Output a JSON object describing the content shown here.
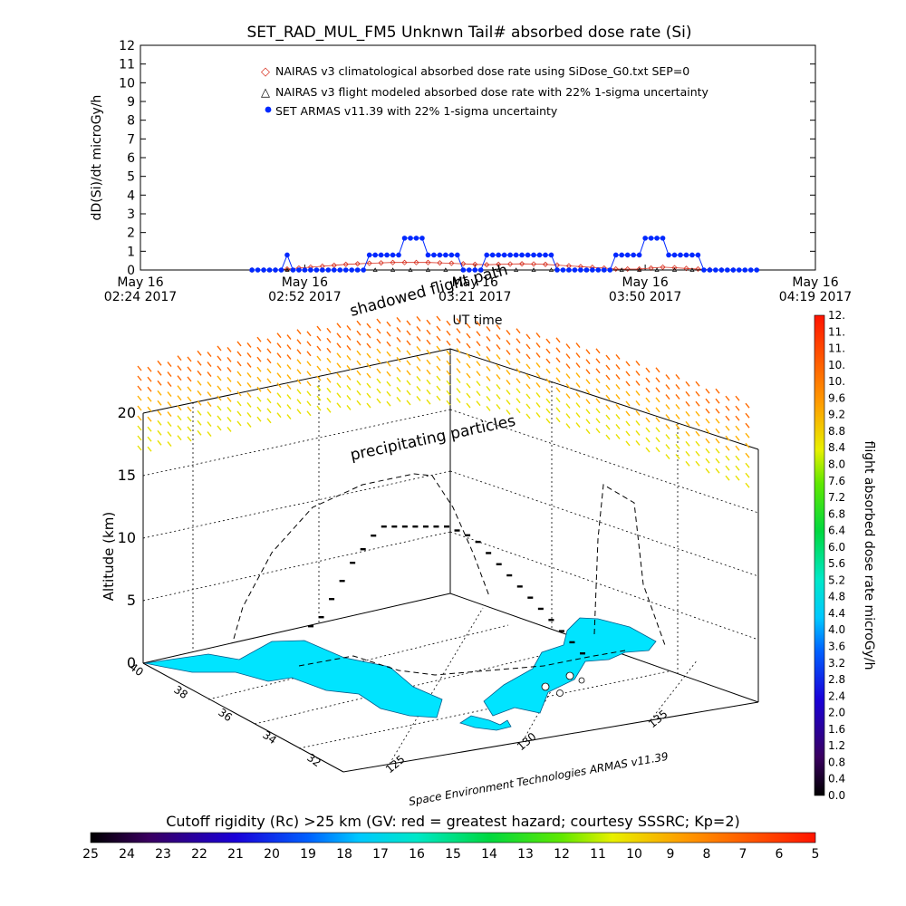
{
  "chart_data": [
    {
      "type": "line",
      "title": "SET_RAD_MUL_FM5 Unknwn Tail#  absorbed dose rate (Si)",
      "xlabel": "UT time",
      "ylabel": "dD(Si)/dt microGy/h",
      "ylim": [
        0,
        12
      ],
      "yticks": [
        "0",
        "1",
        "2",
        "3",
        "4",
        "5",
        "6",
        "7",
        "8",
        "9",
        "10",
        "11",
        "12"
      ],
      "xlim_minutes": [
        0,
        115
      ],
      "xticks": [
        {
          "minute": 0,
          "line1": "May 16",
          "line2": "02:24 2017"
        },
        {
          "minute": 28,
          "line1": "May 16",
          "line2": "02:52 2017"
        },
        {
          "minute": 57,
          "line1": "May 16",
          "line2": "03:21 2017"
        },
        {
          "minute": 86,
          "line1": "May 16",
          "line2": "03:50 2017"
        },
        {
          "minute": 115,
          "line1": "May 16",
          "line2": "04:19 2017"
        }
      ],
      "legend": [
        "NAIRAS v3 climatological absorbed dose rate using SiDose_G0.txt SEP=0",
        "NAIRAS v3 flight modeled absorbed dose rate with 22% 1-sigma uncertainty",
        "SET ARMAS v11.39 with 22% 1-sigma uncertainty"
      ],
      "series": [
        {
          "name": "NAIRAS v3 climatological absorbed dose rate using SiDose_G0.txt SEP=0",
          "color": "#d83020",
          "x": [
            19,
            21,
            23,
            25,
            27,
            29,
            31,
            33,
            35,
            37,
            39,
            41,
            43,
            45,
            47,
            49,
            51,
            53,
            55,
            57,
            59,
            61,
            63,
            65,
            67,
            69,
            71,
            73,
            75,
            77,
            79,
            81,
            83,
            85,
            87,
            89,
            91,
            93,
            95,
            97,
            99,
            101
          ],
          "y": [
            0,
            0,
            0,
            0.05,
            0.1,
            0.15,
            0.2,
            0.25,
            0.3,
            0.33,
            0.36,
            0.38,
            0.4,
            0.4,
            0.4,
            0.4,
            0.38,
            0.36,
            0.33,
            0.3,
            0.28,
            0.3,
            0.32,
            0.33,
            0.32,
            0.3,
            0.26,
            0.22,
            0.18,
            0.14,
            0.1,
            0.05,
            0.05,
            0.05,
            0.1,
            0.15,
            0.12,
            0.08,
            0.05,
            0.02,
            0,
            0
          ]
        },
        {
          "name": "NAIRAS v3 flight modeled absorbed dose rate with 22% 1-sigma uncertainty",
          "color": "#000000",
          "x": [
            19,
            22,
            25,
            28,
            31,
            34,
            37,
            40,
            43,
            46,
            49,
            52,
            55,
            58,
            61,
            64,
            67,
            70,
            73,
            76,
            79,
            82,
            85,
            88,
            91,
            94,
            97,
            100,
            103
          ],
          "y": [
            0,
            0,
            0,
            0,
            0,
            0,
            0,
            0,
            0,
            0,
            0,
            0,
            0,
            0,
            0,
            0,
            0,
            0,
            0,
            0,
            0,
            0,
            0,
            0,
            0,
            0,
            0,
            0,
            0
          ]
        },
        {
          "name": "SET ARMAS v11.39 with 22% 1-sigma uncertainty",
          "color": "#0028ff",
          "x": [
            19,
            20,
            21,
            22,
            23,
            24,
            25,
            26,
            27,
            28,
            29,
            30,
            31,
            32,
            33,
            34,
            35,
            36,
            37,
            38,
            39,
            40,
            41,
            42,
            43,
            44,
            45,
            46,
            47,
            48,
            49,
            50,
            51,
            52,
            53,
            54,
            55,
            56,
            57,
            58,
            59,
            60,
            61,
            62,
            63,
            64,
            65,
            66,
            67,
            68,
            69,
            70,
            71,
            72,
            73,
            74,
            75,
            76,
            77,
            78,
            79,
            80,
            81,
            82,
            83,
            84,
            85,
            86,
            87,
            88,
            89,
            90,
            91,
            92,
            93,
            94,
            95,
            96,
            97,
            98,
            99,
            100,
            101,
            102,
            103,
            104,
            105
          ],
          "y": [
            0,
            0,
            0,
            0,
            0,
            0,
            0.8,
            0,
            0,
            0,
            0,
            0,
            0,
            0,
            0,
            0,
            0,
            0,
            0,
            0,
            0.8,
            0.8,
            0.8,
            0.8,
            0.8,
            0.8,
            1.7,
            1.7,
            1.7,
            1.7,
            0.8,
            0.8,
            0.8,
            0.8,
            0.8,
            0.8,
            0,
            0,
            0,
            0,
            0.8,
            0.8,
            0.8,
            0.8,
            0.8,
            0.8,
            0.8,
            0.8,
            0.8,
            0.8,
            0.8,
            0.8,
            0,
            0,
            0,
            0,
            0,
            0,
            0,
            0,
            0,
            0,
            0.8,
            0.8,
            0.8,
            0.8,
            0.8,
            1.7,
            1.7,
            1.7,
            1.7,
            0.8,
            0.8,
            0.8,
            0.8,
            0.8,
            0.8,
            0,
            0,
            0,
            0,
            0,
            0,
            0,
            0,
            0,
            0
          ]
        }
      ]
    },
    {
      "type": "scatter",
      "description_free": true,
      "zlabel": "Altitude (km)",
      "zticks": [
        "0",
        "5",
        "10",
        "15",
        "20"
      ],
      "lat_ticks": [
        "40",
        "38",
        "36",
        "34",
        "32"
      ],
      "lon_ticks": [
        "125",
        "130",
        "135"
      ],
      "annotations": [
        "shadowed flight path",
        "precipitating particles"
      ],
      "credit": "Space Environment Technologies ARMAS v11.39",
      "flight_path_km": [
        0,
        1,
        3,
        5,
        7,
        8.5,
        10,
        11,
        11,
        11,
        11,
        11,
        11,
        11,
        10.8,
        10.5,
        10,
        9,
        8,
        7,
        6,
        5,
        4,
        3,
        2,
        1,
        0
      ]
    }
  ],
  "colorbar_right": {
    "label": "flight absorbed dose rate microGy/h",
    "ticks": [
      "0.0",
      "0.4",
      "0.8",
      "1.2",
      "1.6",
      "2.0",
      "2.4",
      "2.8",
      "3.2",
      "3.6",
      "4.0",
      "4.4",
      "4.8",
      "5.2",
      "5.6",
      "6.0",
      "6.4",
      "6.8",
      "7.2",
      "7.6",
      "8.0",
      "8.4",
      "8.8",
      "9.2",
      "9.6",
      "10.",
      "10.",
      "11.",
      "11.",
      "12."
    ]
  },
  "colorbar_bottom": {
    "label": "Cutoff rigidity (Rc) >25 km (GV: red = greatest hazard; courtesy SSSRC; Kp=2)",
    "ticks": [
      "25",
      "24",
      "23",
      "22",
      "21",
      "20",
      "19",
      "18",
      "17",
      "16",
      "15",
      "14",
      "13",
      "12",
      "11",
      "10",
      "9",
      "8",
      "7",
      "6",
      "5"
    ]
  }
}
